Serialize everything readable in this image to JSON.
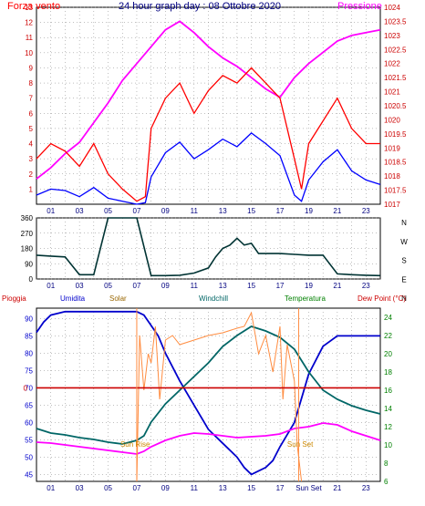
{
  "colors": {
    "wind_speed": "#ff0000",
    "wind_gust": "#0000ff",
    "pressure": "#ff00ff",
    "direction": "#003333",
    "rain": "#cc0000",
    "humidity": "#0000cc",
    "solar": "#ff8c40",
    "windchill": "#006666",
    "temperature": "#008000",
    "dew_point": "#ff00ff",
    "sun_label": "#cc8800",
    "frame": "#000000",
    "grid": "#808080"
  },
  "chart_data": [
    {
      "type": "line",
      "title": "24 hour graph day : 08 Ottobre 2020",
      "left_label": "Forza vento",
      "right_label": "Pressione",
      "x_ticks": [
        "01",
        "03",
        "05",
        "07",
        "09",
        "11",
        "13",
        "15",
        "17",
        "19",
        "21",
        "23"
      ],
      "ylim_left": [
        0,
        13
      ],
      "y_ticks_left": [
        "1",
        "2",
        "3",
        "4",
        "5",
        "6",
        "7",
        "8",
        "9",
        "10",
        "11",
        "12",
        "13"
      ],
      "ylim_right": [
        1017,
        1024
      ],
      "y_ticks_right": [
        "1017",
        "1017.5",
        "1018",
        "1018.5",
        "1019",
        "1019.5",
        "1020",
        "1020.5",
        "1021",
        "1021.5",
        "1022",
        "1022.5",
        "1023",
        "1023.5",
        "1024"
      ],
      "series": [
        {
          "key": "pressure",
          "x": [
            0,
            1,
            2,
            3,
            4,
            5,
            6,
            7,
            8,
            9,
            10,
            11,
            12,
            13,
            14,
            15,
            16,
            17,
            18,
            19,
            20,
            21,
            22,
            23,
            24
          ],
          "y": [
            1017.9,
            1018.3,
            1018.8,
            1019.2,
            1019.9,
            1020.6,
            1021.4,
            1022.0,
            1022.6,
            1023.2,
            1023.5,
            1023.1,
            1022.6,
            1022.2,
            1021.9,
            1021.5,
            1021.1,
            1020.8,
            1021.5,
            1022.0,
            1022.4,
            1022.8,
            1023.0,
            1023.1,
            1023.2
          ]
        },
        {
          "key": "wind_gust",
          "x": [
            0,
            1,
            2,
            3,
            4,
            5,
            6,
            7,
            7.6,
            8,
            9,
            10,
            11,
            12,
            13,
            14,
            15,
            16,
            17,
            18,
            18.5,
            19,
            20,
            21,
            22,
            23,
            24
          ],
          "y": [
            0.6,
            1.0,
            0.9,
            0.5,
            1.1,
            0.4,
            0.2,
            0,
            0.1,
            1.8,
            3.4,
            4.1,
            3.0,
            3.6,
            4.3,
            3.8,
            4.7,
            4.0,
            3.2,
            0.6,
            0.2,
            1.6,
            2.8,
            3.6,
            2.2,
            1.6,
            1.3
          ]
        },
        {
          "key": "wind_speed",
          "x": [
            0,
            1,
            2,
            3,
            4,
            5,
            6,
            7,
            7.6,
            8,
            9,
            10,
            11,
            12,
            13,
            14,
            15,
            16,
            17,
            18,
            18.5,
            19,
            20,
            21,
            22,
            23,
            24
          ],
          "y": [
            3,
            4,
            3.5,
            2.5,
            4,
            2,
            1,
            0.2,
            0.5,
            5,
            7,
            8,
            6,
            7.5,
            8.5,
            8,
            9,
            8,
            7,
            3,
            1,
            4,
            5.5,
            7,
            5,
            4,
            4
          ]
        },
        {
          "key": "direction",
          "x": [
            0,
            1,
            2,
            3,
            4,
            5,
            6,
            7,
            8,
            9,
            10,
            11,
            12,
            12.5,
            13,
            13.5,
            14,
            14.5,
            15,
            15.5,
            16,
            17,
            18,
            19,
            20,
            21,
            22,
            23,
            24
          ],
          "ylim": [
            0,
            360
          ],
          "y_ticks": [
            "0",
            "90",
            "180",
            "270",
            "360"
          ],
          "dir_labels": [
            "N",
            "W",
            "S",
            "E",
            "N"
          ],
          "y": [
            140,
            135,
            130,
            25,
            25,
            360,
            360,
            360,
            20,
            20,
            22,
            35,
            65,
            130,
            180,
            200,
            240,
            200,
            210,
            150,
            150,
            150,
            145,
            140,
            140,
            30,
            25,
            22,
            20
          ]
        }
      ]
    },
    {
      "type": "line",
      "title": "",
      "legend": [
        "Pioggia",
        "Umidita",
        "Solar",
        "Windchill",
        "Temperatura",
        "Dew Point (°C)"
      ],
      "x_ticks": [
        "01",
        "03",
        "05",
        "07",
        "09",
        "11",
        "13",
        "15",
        "17",
        "Sun Set",
        "21",
        "23"
      ],
      "ylim_left": [
        43,
        93
      ],
      "y_ticks_left": [
        "45",
        "50",
        "55",
        "60",
        "65",
        "70",
        "75",
        "80",
        "85",
        "90"
      ],
      "ylim_right": [
        6,
        25
      ],
      "y_ticks_right": [
        "6",
        "8",
        "10",
        "12",
        "14",
        "16",
        "18",
        "20",
        "22",
        "24"
      ],
      "zero_label": "0",
      "sun_rise": "Sun Rise",
      "sun_set": "Sun Set",
      "series": [
        {
          "key": "humidity",
          "x": [
            0,
            0.5,
            1,
            2,
            3,
            4,
            5,
            6,
            7,
            7.5,
            8,
            8.5,
            9,
            10,
            11,
            12,
            13,
            14,
            14.5,
            15,
            15.5,
            16,
            16.5,
            17,
            18,
            19,
            20,
            21,
            22,
            23,
            24
          ],
          "y": [
            86,
            89,
            91,
            92,
            92,
            92,
            92,
            92,
            92,
            91,
            88,
            85,
            80,
            72,
            65,
            58,
            54,
            50,
            47,
            45,
            46,
            47,
            49,
            53,
            60,
            74,
            82,
            85,
            85,
            85,
            85
          ]
        },
        {
          "key": "windchill",
          "x": [
            0,
            1,
            2,
            3,
            4,
            5,
            6,
            7,
            7.5,
            8,
            9,
            10,
            11,
            12,
            13,
            14,
            15,
            16,
            17,
            18,
            19,
            20,
            21,
            22,
            23,
            24
          ],
          "y": [
            11.8,
            11.3,
            11.1,
            10.8,
            10.6,
            10.3,
            10.1,
            10.5,
            11.0,
            12.5,
            14.5,
            16.0,
            17.5,
            19.0,
            20.8,
            22.0,
            23.0,
            22.5,
            21.8,
            20.5,
            18.0,
            16.0,
            15.0,
            14.3,
            13.8,
            13.4
          ]
        },
        {
          "key": "dew_point",
          "x": [
            0,
            1,
            2,
            3,
            4,
            5,
            6,
            7,
            7.5,
            8,
            9,
            10,
            11,
            12,
            13,
            14,
            15,
            16,
            17,
            18,
            19,
            20,
            21,
            22,
            23,
            24
          ],
          "y": [
            10.3,
            10.2,
            10.0,
            9.8,
            9.6,
            9.4,
            9.2,
            9.0,
            9.3,
            9.8,
            10.5,
            11.0,
            11.3,
            11.2,
            11.0,
            10.8,
            10.9,
            11.0,
            11.2,
            11.8,
            12.0,
            12.4,
            12.2,
            11.5,
            11.0,
            10.5
          ]
        },
        {
          "key": "solar",
          "x": [
            7,
            7.2,
            7.5,
            7.8,
            8,
            8.3,
            8.6,
            9,
            9.5,
            10,
            11,
            12,
            13,
            14,
            14.5,
            15,
            15.5,
            16,
            16.5,
            17,
            17.2,
            17.5,
            18,
            18.2,
            18.5
          ],
          "y": [
            6,
            22,
            16,
            20,
            19,
            23,
            15,
            21.5,
            22,
            21,
            21.5,
            22,
            22.3,
            22.8,
            23,
            24.5,
            20,
            22,
            18,
            23,
            15,
            21,
            17,
            10,
            6
          ]
        },
        {
          "key": "rain",
          "x": [
            0,
            24
          ],
          "y": [
            70,
            70
          ]
        }
      ]
    }
  ]
}
